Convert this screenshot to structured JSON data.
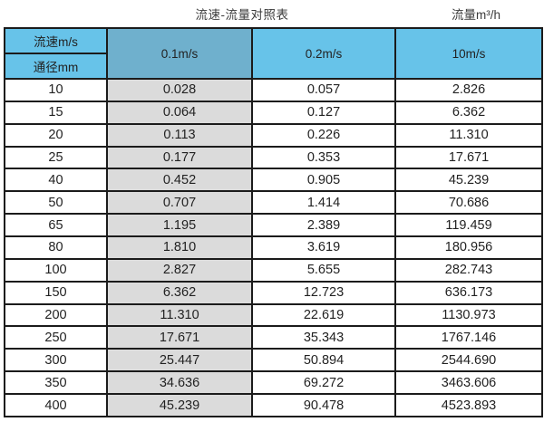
{
  "page": {
    "title": "流速-流量对照表",
    "unit_label": "流量m³/h"
  },
  "table": {
    "corner": {
      "top": "流速m/s",
      "bottom": "通径mm"
    },
    "velocity_columns": [
      "0.1m/s",
      "0.2m/s",
      "10m/s"
    ],
    "rows": [
      {
        "diameter": "10",
        "values": [
          "0.028",
          "0.057",
          "2.826"
        ]
      },
      {
        "diameter": "15",
        "values": [
          "0.064",
          "0.127",
          "6.362"
        ]
      },
      {
        "diameter": "20",
        "values": [
          "0.113",
          "0.226",
          "11.310"
        ]
      },
      {
        "diameter": "25",
        "values": [
          "0.177",
          "0.353",
          "17.671"
        ]
      },
      {
        "diameter": "40",
        "values": [
          "0.452",
          "0.905",
          "45.239"
        ]
      },
      {
        "diameter": "50",
        "values": [
          "0.707",
          "1.414",
          "70.686"
        ]
      },
      {
        "diameter": "65",
        "values": [
          "1.195",
          "2.389",
          "119.459"
        ]
      },
      {
        "diameter": "80",
        "values": [
          "1.810",
          "3.619",
          "180.956"
        ]
      },
      {
        "diameter": "100",
        "values": [
          "2.827",
          "5.655",
          "282.743"
        ]
      },
      {
        "diameter": "150",
        "values": [
          "6.362",
          "12.723",
          "636.173"
        ]
      },
      {
        "diameter": "200",
        "values": [
          "11.310",
          "22.619",
          "1130.973"
        ]
      },
      {
        "diameter": "250",
        "values": [
          "17.671",
          "35.343",
          "1767.146"
        ]
      },
      {
        "diameter": "300",
        "values": [
          "25.447",
          "50.894",
          "2544.690"
        ]
      },
      {
        "diameter": "350",
        "values": [
          "34.636",
          "69.272",
          "3463.606"
        ]
      },
      {
        "diameter": "400",
        "values": [
          "45.239",
          "90.478",
          "4523.893"
        ]
      }
    ]
  },
  "colors": {
    "header_blue": "#67c3e9",
    "header_col_blue": "#6fb0cd",
    "gray_column": "#dbdbdb",
    "border": "#1b1b1b"
  },
  "chart_data": {
    "type": "table",
    "title": "流速-流量对照表",
    "unit": "流量m³/h",
    "columns": [
      "通径mm",
      "0.1m/s",
      "0.2m/s",
      "10m/s"
    ],
    "rows": [
      [
        10,
        0.028,
        0.057,
        2.826
      ],
      [
        15,
        0.064,
        0.127,
        6.362
      ],
      [
        20,
        0.113,
        0.226,
        11.31
      ],
      [
        25,
        0.177,
        0.353,
        17.671
      ],
      [
        40,
        0.452,
        0.905,
        45.239
      ],
      [
        50,
        0.707,
        1.414,
        70.686
      ],
      [
        65,
        1.195,
        2.389,
        119.459
      ],
      [
        80,
        1.81,
        3.619,
        180.956
      ],
      [
        100,
        2.827,
        5.655,
        282.743
      ],
      [
        150,
        6.362,
        12.723,
        636.173
      ],
      [
        200,
        11.31,
        22.619,
        1130.973
      ],
      [
        250,
        17.671,
        35.343,
        1767.146
      ],
      [
        300,
        25.447,
        50.894,
        2544.69
      ],
      [
        350,
        34.636,
        69.272,
        3463.606
      ],
      [
        400,
        45.239,
        90.478,
        4523.893
      ]
    ]
  }
}
